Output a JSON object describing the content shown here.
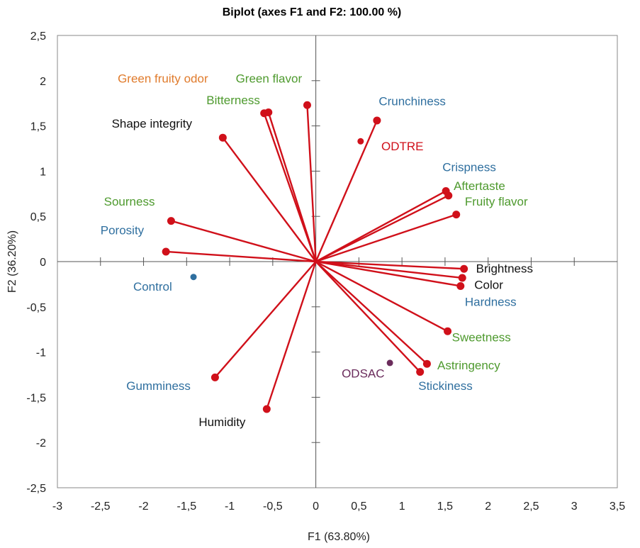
{
  "chart_data": {
    "type": "scatter",
    "subtype": "biplot",
    "title": "Biplot (axes F1 and F2: 100.00 %)",
    "xlabel": "F1 (63.80%)",
    "ylabel": "F2 (36.20%)",
    "xlim": [
      -3,
      3.5
    ],
    "ylim": [
      -2.5,
      2.5
    ],
    "x_ticks": [
      -3,
      -2.5,
      -2,
      -1.5,
      -1,
      -0.5,
      0,
      0.5,
      1,
      1.5,
      2,
      2.5,
      3,
      3.5
    ],
    "y_ticks": [
      -2.5,
      -2,
      -1.5,
      -1,
      -0.5,
      0,
      0.5,
      1,
      1.5,
      2,
      2.5
    ],
    "x_tick_labels": [
      "-3",
      "-2,5",
      "-2",
      "-1,5",
      "-1",
      "-0,5",
      "0",
      "0,5",
      "1",
      "1,5",
      "2",
      "2,5",
      "3",
      "3,5"
    ],
    "y_tick_labels": [
      "-2,5",
      "-2",
      "-1,5",
      "-1",
      "-0,5",
      "0",
      "0,5",
      "1",
      "1,5",
      "2",
      "2,5"
    ],
    "colors": {
      "vector": "#d0101a",
      "texture": "#2f6f9f",
      "taste": "#4e9a2e",
      "odor": "#e07b2c",
      "appearance": "#111111",
      "sample_odtre": "#d0101a",
      "sample_odsac": "#6b2c5c",
      "sample_control": "#2f6f9f"
    },
    "variables": [
      {
        "label": "Green fruity odor",
        "x": -0.55,
        "y": 1.65,
        "color": "odor",
        "lx": -2.3,
        "ly": 1.98,
        "anchor": "start"
      },
      {
        "label": "Green flavor",
        "x": -0.1,
        "y": 1.73,
        "color": "taste",
        "lx": -0.93,
        "ly": 1.98,
        "anchor": "start"
      },
      {
        "label": "Bitterness",
        "x": -0.6,
        "y": 1.64,
        "color": "taste",
        "lx": -1.27,
        "ly": 1.74,
        "anchor": "start"
      },
      {
        "label": "Shape integrity",
        "x": -1.08,
        "y": 1.37,
        "color": "appearance",
        "lx": -2.37,
        "ly": 1.48,
        "anchor": "start"
      },
      {
        "label": "Crunchiness",
        "x": 0.71,
        "y": 1.56,
        "color": "texture",
        "lx": 0.73,
        "ly": 1.73,
        "anchor": "start"
      },
      {
        "label": "Crispness",
        "x": 1.51,
        "y": 0.78,
        "color": "texture",
        "lx": 1.47,
        "ly": 1.0,
        "anchor": "start"
      },
      {
        "label": "Aftertaste",
        "x": 1.54,
        "y": 0.73,
        "color": "taste",
        "lx": 1.6,
        "ly": 0.79,
        "anchor": "start"
      },
      {
        "label": "Fruity flavor",
        "x": 1.63,
        "y": 0.52,
        "color": "taste",
        "lx": 1.73,
        "ly": 0.62,
        "anchor": "start"
      },
      {
        "label": "Sourness",
        "x": -1.68,
        "y": 0.45,
        "color": "taste",
        "lx": -2.46,
        "ly": 0.62,
        "anchor": "start"
      },
      {
        "label": "Porosity",
        "x": -1.74,
        "y": 0.11,
        "color": "texture",
        "lx": -2.5,
        "ly": 0.3,
        "anchor": "start"
      },
      {
        "label": "Brightness",
        "x": 1.72,
        "y": -0.08,
        "color": "appearance",
        "lx": 1.86,
        "ly": -0.12,
        "anchor": "start"
      },
      {
        "label": "Color",
        "x": 1.7,
        "y": -0.18,
        "color": "appearance",
        "lx": 1.84,
        "ly": -0.3,
        "anchor": "start"
      },
      {
        "label": "Hardness",
        "x": 1.68,
        "y": -0.27,
        "color": "texture",
        "lx": 1.73,
        "ly": -0.49,
        "anchor": "start"
      },
      {
        "label": "Sweetness",
        "x": 1.53,
        "y": -0.77,
        "color": "taste",
        "lx": 1.58,
        "ly": -0.88,
        "anchor": "start"
      },
      {
        "label": "Astringency",
        "x": 1.29,
        "y": -1.13,
        "color": "taste",
        "lx": 1.41,
        "ly": -1.19,
        "anchor": "start"
      },
      {
        "label": "Stickiness",
        "x": 1.21,
        "y": -1.22,
        "color": "texture",
        "lx": 1.19,
        "ly": -1.42,
        "anchor": "start"
      },
      {
        "label": "Gumminess",
        "x": -1.17,
        "y": -1.28,
        "color": "texture",
        "lx": -2.2,
        "ly": -1.42,
        "anchor": "start"
      },
      {
        "label": "Humidity",
        "x": -0.57,
        "y": -1.63,
        "color": "appearance",
        "lx": -1.36,
        "ly": -1.82,
        "anchor": "start"
      }
    ],
    "observations": [
      {
        "label": "ODTRE",
        "x": 0.52,
        "y": 1.33,
        "color": "sample_odtre",
        "lx": 0.76,
        "ly": 1.23,
        "anchor": "start"
      },
      {
        "label": "ODSAC",
        "x": 0.86,
        "y": -1.12,
        "color": "sample_odsac",
        "lx": 0.3,
        "ly": -1.28,
        "anchor": "start"
      },
      {
        "label": "Control",
        "x": -1.42,
        "y": -0.17,
        "color": "sample_control",
        "lx": -2.12,
        "ly": -0.32,
        "anchor": "start"
      }
    ]
  }
}
